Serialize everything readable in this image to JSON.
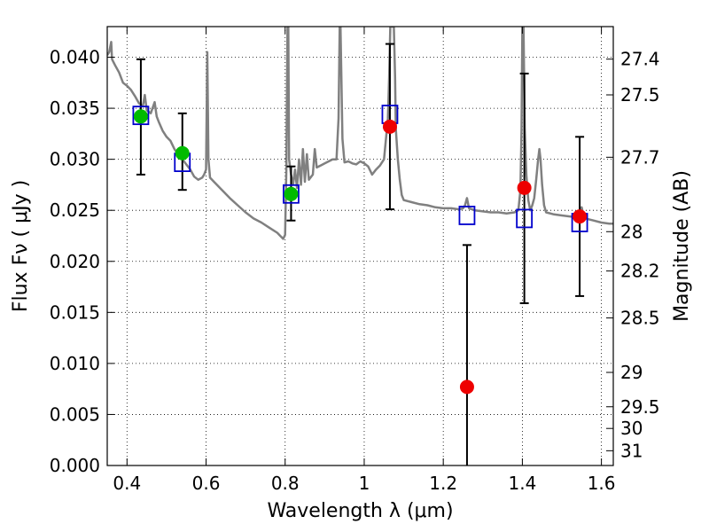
{
  "chart_data": {
    "type": "scatter",
    "xlabel": "Wavelength  λ (μm)",
    "ylabel": "Flux  Fν  ( μJy )",
    "ylabel_right": "Magnitude (AB)",
    "xlim": [
      0.35,
      1.63
    ],
    "ylim": [
      0.0,
      0.043
    ],
    "grid": true,
    "x_ticks": [
      {
        "value": 0.4,
        "label": "0.4"
      },
      {
        "value": 0.6,
        "label": "0.6"
      },
      {
        "value": 0.8,
        "label": "0.8"
      },
      {
        "value": 1.0,
        "label": "1"
      },
      {
        "value": 1.2,
        "label": "1.2"
      },
      {
        "value": 1.4,
        "label": "1.4"
      },
      {
        "value": 1.6,
        "label": "1.6"
      }
    ],
    "y_ticks": [
      {
        "value": 0.0,
        "label": "0.000"
      },
      {
        "value": 0.005,
        "label": "0.005"
      },
      {
        "value": 0.01,
        "label": "0.010"
      },
      {
        "value": 0.015,
        "label": "0.015"
      },
      {
        "value": 0.02,
        "label": "0.020"
      },
      {
        "value": 0.025,
        "label": "0.025"
      },
      {
        "value": 0.03,
        "label": "0.030"
      },
      {
        "value": 0.035,
        "label": "0.035"
      },
      {
        "value": 0.04,
        "label": "0.040"
      }
    ],
    "mag_ticks": [
      {
        "value": 27.4,
        "label": "27.4"
      },
      {
        "value": 27.5,
        "label": "27.5"
      },
      {
        "value": 27.7,
        "label": "27.7"
      },
      {
        "value": 28.0,
        "label": "28"
      },
      {
        "value": 28.2,
        "label": "28.2"
      },
      {
        "value": 28.5,
        "label": "28.5"
      },
      {
        "value": 29.0,
        "label": "29"
      },
      {
        "value": 29.5,
        "label": "29.5"
      },
      {
        "value": 30.0,
        "label": "30"
      },
      {
        "value": 31.0,
        "label": "31"
      }
    ],
    "model_spectrum": {
      "color": "#808080",
      "points": [
        [
          0.35,
          0.0402
        ],
        [
          0.355,
          0.0405
        ],
        [
          0.36,
          0.0415
        ],
        [
          0.362,
          0.0398
        ],
        [
          0.37,
          0.0392
        ],
        [
          0.38,
          0.0385
        ],
        [
          0.39,
          0.0375
        ],
        [
          0.4,
          0.0372
        ],
        [
          0.41,
          0.0368
        ],
        [
          0.42,
          0.0362
        ],
        [
          0.43,
          0.0355
        ],
        [
          0.44,
          0.0352
        ],
        [
          0.445,
          0.0363
        ],
        [
          0.45,
          0.0348
        ],
        [
          0.46,
          0.0345
        ],
        [
          0.47,
          0.0356
        ],
        [
          0.475,
          0.0342
        ],
        [
          0.48,
          0.0337
        ],
        [
          0.49,
          0.0328
        ],
        [
          0.5,
          0.0322
        ],
        [
          0.51,
          0.0318
        ],
        [
          0.52,
          0.031
        ],
        [
          0.53,
          0.0304
        ],
        [
          0.54,
          0.03
        ],
        [
          0.55,
          0.0295
        ],
        [
          0.56,
          0.029
        ],
        [
          0.57,
          0.0283
        ],
        [
          0.58,
          0.028
        ],
        [
          0.59,
          0.0282
        ],
        [
          0.595,
          0.0285
        ],
        [
          0.6,
          0.029
        ],
        [
          0.603,
          0.0405
        ],
        [
          0.606,
          0.03
        ],
        [
          0.61,
          0.0282
        ],
        [
          0.62,
          0.0278
        ],
        [
          0.64,
          0.027
        ],
        [
          0.66,
          0.0262
        ],
        [
          0.68,
          0.0255
        ],
        [
          0.7,
          0.0248
        ],
        [
          0.72,
          0.0242
        ],
        [
          0.74,
          0.0238
        ],
        [
          0.76,
          0.0233
        ],
        [
          0.78,
          0.0228
        ],
        [
          0.79,
          0.0224
        ],
        [
          0.795,
          0.0222
        ],
        [
          0.8,
          0.0226
        ],
        [
          0.803,
          0.029
        ],
        [
          0.806,
          0.043
        ],
        [
          0.808,
          0.043
        ],
        [
          0.81,
          0.03
        ],
        [
          0.815,
          0.0285
        ],
        [
          0.82,
          0.0275
        ],
        [
          0.825,
          0.029
        ],
        [
          0.83,
          0.0272
        ],
        [
          0.835,
          0.03
        ],
        [
          0.84,
          0.0275
        ],
        [
          0.845,
          0.031
        ],
        [
          0.85,
          0.0278
        ],
        [
          0.855,
          0.0305
        ],
        [
          0.86,
          0.028
        ],
        [
          0.87,
          0.0285
        ],
        [
          0.875,
          0.031
        ],
        [
          0.88,
          0.0292
        ],
        [
          0.89,
          0.0294
        ],
        [
          0.9,
          0.0296
        ],
        [
          0.91,
          0.0298
        ],
        [
          0.92,
          0.03
        ],
        [
          0.93,
          0.03
        ],
        [
          0.935,
          0.034
        ],
        [
          0.938,
          0.043
        ],
        [
          0.94,
          0.043
        ],
        [
          0.945,
          0.032
        ],
        [
          0.95,
          0.0297
        ],
        [
          0.96,
          0.0298
        ],
        [
          0.97,
          0.0296
        ],
        [
          0.98,
          0.0295
        ],
        [
          0.99,
          0.0298
        ],
        [
          1.0,
          0.0296
        ],
        [
          1.01,
          0.0293
        ],
        [
          1.02,
          0.0285
        ],
        [
          1.03,
          0.029
        ],
        [
          1.04,
          0.0294
        ],
        [
          1.05,
          0.03
        ],
        [
          1.055,
          0.032
        ],
        [
          1.06,
          0.034
        ],
        [
          1.063,
          0.038
        ],
        [
          1.066,
          0.043
        ],
        [
          1.075,
          0.043
        ],
        [
          1.078,
          0.038
        ],
        [
          1.08,
          0.033
        ],
        [
          1.085,
          0.03
        ],
        [
          1.09,
          0.028
        ],
        [
          1.095,
          0.0265
        ],
        [
          1.1,
          0.026
        ],
        [
          1.12,
          0.0258
        ],
        [
          1.14,
          0.0256
        ],
        [
          1.16,
          0.0255
        ],
        [
          1.18,
          0.0253
        ],
        [
          1.2,
          0.0252
        ],
        [
          1.22,
          0.0252
        ],
        [
          1.24,
          0.0251
        ],
        [
          1.25,
          0.0252
        ],
        [
          1.255,
          0.0255
        ],
        [
          1.26,
          0.0262
        ],
        [
          1.265,
          0.0252
        ],
        [
          1.28,
          0.025
        ],
        [
          1.3,
          0.0249
        ],
        [
          1.32,
          0.0248
        ],
        [
          1.34,
          0.0248
        ],
        [
          1.36,
          0.0247
        ],
        [
          1.38,
          0.0248
        ],
        [
          1.39,
          0.025
        ],
        [
          1.395,
          0.027
        ],
        [
          1.398,
          0.033
        ],
        [
          1.4,
          0.043
        ],
        [
          1.403,
          0.043
        ],
        [
          1.406,
          0.033
        ],
        [
          1.41,
          0.0285
        ],
        [
          1.415,
          0.026
        ],
        [
          1.42,
          0.025
        ],
        [
          1.425,
          0.0255
        ],
        [
          1.43,
          0.0262
        ],
        [
          1.435,
          0.028
        ],
        [
          1.44,
          0.03
        ],
        [
          1.443,
          0.031
        ],
        [
          1.446,
          0.03
        ],
        [
          1.45,
          0.0275
        ],
        [
          1.455,
          0.0255
        ],
        [
          1.46,
          0.0248
        ],
        [
          1.48,
          0.0246
        ],
        [
          1.5,
          0.0245
        ],
        [
          1.52,
          0.0244
        ],
        [
          1.54,
          0.0243
        ],
        [
          1.545,
          0.025
        ],
        [
          1.55,
          0.0253
        ],
        [
          1.555,
          0.0245
        ],
        [
          1.56,
          0.0242
        ],
        [
          1.58,
          0.024
        ],
        [
          1.6,
          0.0238
        ],
        [
          1.62,
          0.0237
        ],
        [
          1.63,
          0.0237
        ]
      ]
    },
    "series": [
      {
        "marker": "square",
        "color": "#0000cc",
        "points": [
          {
            "x": 0.435,
            "y": 0.0343
          },
          {
            "x": 0.54,
            "y": 0.0297
          },
          {
            "x": 0.815,
            "y": 0.0266
          },
          {
            "x": 1.065,
            "y": 0.0344
          },
          {
            "x": 1.26,
            "y": 0.0245
          },
          {
            "x": 1.405,
            "y": 0.0242
          },
          {
            "x": 1.545,
            "y": 0.0238
          }
        ]
      },
      {
        "marker": "circle",
        "color": "#00bb00",
        "points": [
          {
            "x": 0.435,
            "y": 0.0342,
            "err_lo": 0.0285,
            "err_hi": 0.0398
          },
          {
            "x": 0.54,
            "y": 0.0306,
            "err_lo": 0.027,
            "err_hi": 0.0345
          },
          {
            "x": 0.815,
            "y": 0.0266,
            "err_lo": 0.024,
            "err_hi": 0.0293
          }
        ]
      },
      {
        "marker": "circle",
        "color": "#ee0000",
        "points": [
          {
            "x": 1.065,
            "y": 0.0332,
            "err_lo": 0.0251,
            "err_hi": 0.0413
          },
          {
            "x": 1.26,
            "y": 0.0077,
            "err_lo": 0.0,
            "err_hi": 0.0216
          },
          {
            "x": 1.405,
            "y": 0.0272,
            "err_lo": 0.0159,
            "err_hi": 0.0384
          },
          {
            "x": 1.545,
            "y": 0.0244,
            "err_lo": 0.0166,
            "err_hi": 0.0322
          }
        ]
      }
    ]
  }
}
